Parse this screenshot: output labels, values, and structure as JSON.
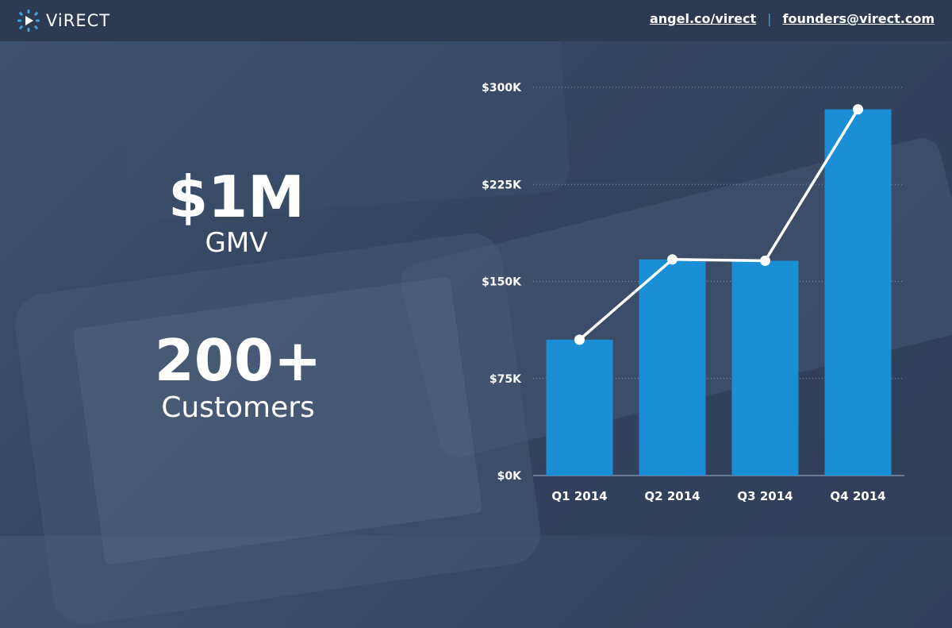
{
  "brand": {
    "name": "ViRECT"
  },
  "header": {
    "link_angel": "angel.co/virect",
    "link_email": "founders@virect.com",
    "separator": "|"
  },
  "stats": {
    "gmv_value": "$1M",
    "gmv_label": "GMV",
    "customers_value": "200+",
    "customers_label": "Customers"
  },
  "colors": {
    "bar": "#1a8fd6",
    "line": "#ffffff",
    "accent": "#3fa0dc",
    "grid": "#7e8ea6"
  },
  "chart_data": {
    "type": "bar",
    "categories": [
      "Q1 2014",
      "Q2 2014",
      "Q3 2014",
      "Q4 2014"
    ],
    "series": [
      {
        "type": "bar",
        "values": [
          105000,
          167000,
          166000,
          283000
        ]
      },
      {
        "type": "line",
        "values": [
          105000,
          167000,
          166000,
          283000
        ]
      }
    ],
    "ylim": [
      0,
      300000
    ],
    "yticks": [
      0,
      75000,
      150000,
      225000,
      300000
    ],
    "ytick_labels": [
      "$0K",
      "$75K",
      "$150K",
      "$225K",
      "$300K"
    ],
    "grid": true,
    "legend": "none"
  }
}
